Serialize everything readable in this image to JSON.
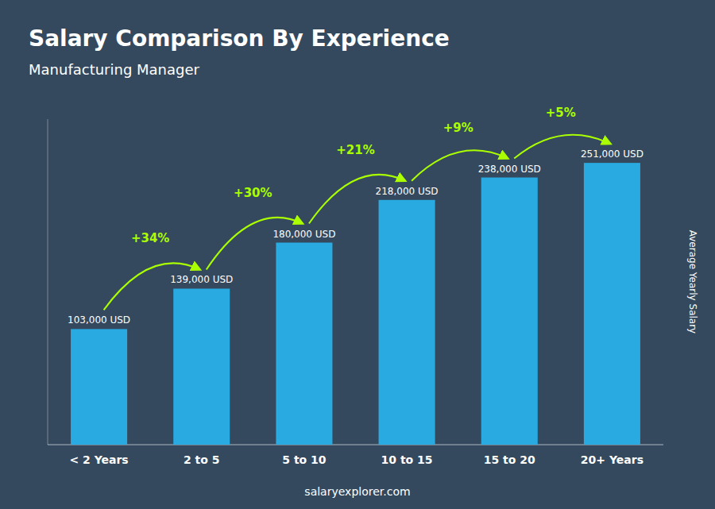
{
  "chart_data": {
    "type": "bar",
    "title": "Salary Comparison By Experience",
    "subtitle": "Manufacturing Manager",
    "categories": [
      "< 2 Years",
      "2 to 5",
      "5 to 10",
      "10 to 15",
      "15 to 20",
      "20+ Years"
    ],
    "values": [
      103000,
      139000,
      180000,
      218000,
      238000,
      251000
    ],
    "value_labels": [
      "103,000 USD",
      "139,000 USD",
      "180,000 USD",
      "218,000 USD",
      "238,000 USD",
      "251,000 USD"
    ],
    "data_labels": true,
    "color": "#29ABE2",
    "ylabel": "Average Yearly Salary",
    "ylim": [
      0,
      290000
    ],
    "grid": false,
    "tick_labels": "x",
    "annotations": [
      {
        "text": "+34%",
        "color": "#AAFF00"
      },
      {
        "text": "+30%",
        "color": "#AAFF00"
      },
      {
        "text": "+21%",
        "color": "#AAFF00"
      },
      {
        "text": "+9%",
        "color": "#AAFF00"
      },
      {
        "text": "+5%",
        "color": "#AAFF00"
      }
    ],
    "footer": "salaryexplorer.com"
  }
}
